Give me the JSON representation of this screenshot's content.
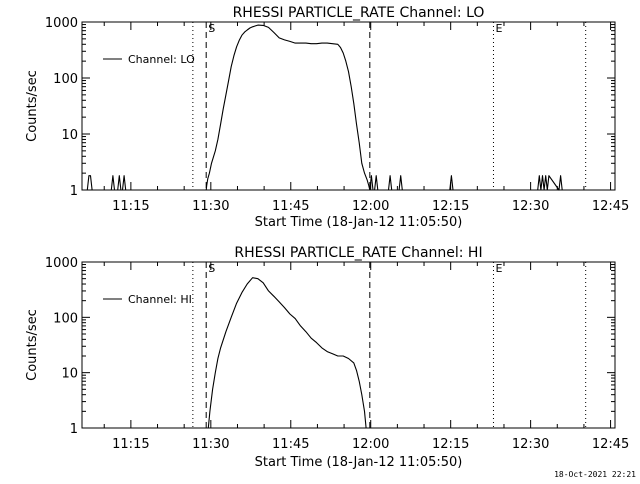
{
  "footer": {
    "timestamp": "18-Oct-2021 22:21"
  },
  "chart_data": [
    {
      "type": "line",
      "title": "RHESSI PARTICLE_RATE Channel: LO",
      "xlabel": "Start Time (18-Jan-12 11:05:50)",
      "ylabel": "Counts/sec",
      "yscale": "log",
      "ylim": [
        1,
        1000
      ],
      "xlim_minutes": [
        0,
        100
      ],
      "x_ticks": [
        {
          "t": 9.17,
          "label": "11:15"
        },
        {
          "t": 24.17,
          "label": "11:30"
        },
        {
          "t": 39.17,
          "label": "11:45"
        },
        {
          "t": 54.17,
          "label": "12:00"
        },
        {
          "t": 69.17,
          "label": "12:15"
        },
        {
          "t": 84.17,
          "label": "12:30"
        },
        {
          "t": 99.17,
          "label": "12:45"
        }
      ],
      "y_ticks": [
        {
          "v": 1,
          "label": "1"
        },
        {
          "v": 10,
          "label": "10"
        },
        {
          "v": 100,
          "label": "100"
        },
        {
          "v": 1000,
          "label": "1000"
        }
      ],
      "legend": {
        "label": "Channel: LO",
        "location": "top-left"
      },
      "markers": [
        {
          "t": 20.8,
          "style": "dotted",
          "label": ""
        },
        {
          "t": 23.3,
          "style": "dashed",
          "label": "S"
        },
        {
          "t": 54.0,
          "style": "dashed",
          "label": ""
        },
        {
          "t": 77.2,
          "style": "dotted",
          "label": "E"
        },
        {
          "t": 94.5,
          "style": "dotted",
          "label": ""
        }
      ],
      "series": [
        {
          "name": "Channel: LO",
          "x": [
            0.0,
            1.0,
            1.3,
            1.6,
            1.9,
            2.2,
            2.5,
            5.5,
            5.8,
            6.1,
            6.4,
            6.7,
            7.0,
            7.3,
            7.6,
            7.9,
            8.2,
            23.3,
            23.4,
            23.6,
            23.9,
            24.3,
            25.0,
            25.5,
            26.0,
            26.5,
            27.0,
            27.5,
            28.0,
            28.5,
            29.0,
            29.5,
            30.0,
            30.5,
            31.0,
            31.5,
            32.0,
            33.0,
            34.0,
            35.0,
            36.0,
            37.0,
            38.0,
            39.0,
            40.0,
            41.0,
            42.0,
            43.0,
            44.0,
            45.0,
            46.0,
            47.0,
            48.0,
            48.5,
            49.0,
            49.5,
            50.0,
            50.5,
            51.0,
            51.5,
            52.0,
            52.5,
            53.0,
            53.5,
            53.8,
            54.0,
            54.3,
            54.6,
            54.9,
            55.2,
            55.5,
            57.5,
            57.8,
            58.1,
            58.4,
            59.5,
            59.8,
            60.1,
            60.4,
            69.0,
            69.3,
            69.6,
            85.5,
            85.8,
            86.1,
            86.4,
            86.7,
            87.0,
            87.3,
            87.6,
            89.5,
            89.8,
            90.1
          ],
          "y": [
            1,
            1,
            1.8,
            1.8,
            1,
            1,
            1,
            1,
            1.8,
            1,
            1,
            1,
            1.8,
            1,
            1,
            1.8,
            1,
            1,
            1.2,
            1.6,
            2,
            3,
            5,
            8,
            15,
            28,
            50,
            90,
            160,
            250,
            360,
            470,
            580,
            660,
            720,
            780,
            820,
            880,
            870,
            800,
            650,
            520,
            480,
            450,
            420,
            420,
            420,
            410,
            410,
            420,
            420,
            410,
            400,
            350,
            280,
            200,
            130,
            70,
            35,
            15,
            7,
            3,
            2,
            1.5,
            1.2,
            1,
            1.8,
            1,
            1,
            1.8,
            1,
            1,
            1.8,
            1,
            1,
            1,
            1.8,
            1,
            1,
            1,
            1.8,
            1,
            1,
            1.8,
            1,
            1.8,
            1,
            1.8,
            1,
            1.8,
            1,
            1.8,
            1
          ]
        }
      ]
    },
    {
      "type": "line",
      "title": "RHESSI PARTICLE_RATE Channel: HI",
      "xlabel": "Start Time (18-Jan-12 11:05:50)",
      "ylabel": "Counts/sec",
      "yscale": "log",
      "ylim": [
        1,
        1000
      ],
      "xlim_minutes": [
        0,
        100
      ],
      "x_ticks": [
        {
          "t": 9.17,
          "label": "11:15"
        },
        {
          "t": 24.17,
          "label": "11:30"
        },
        {
          "t": 39.17,
          "label": "11:45"
        },
        {
          "t": 54.17,
          "label": "12:00"
        },
        {
          "t": 69.17,
          "label": "12:15"
        },
        {
          "t": 84.17,
          "label": "12:30"
        },
        {
          "t": 99.17,
          "label": "12:45"
        }
      ],
      "y_ticks": [
        {
          "v": 1,
          "label": "1"
        },
        {
          "v": 10,
          "label": "10"
        },
        {
          "v": 100,
          "label": "100"
        },
        {
          "v": 1000,
          "label": "1000"
        }
      ],
      "legend": {
        "label": "Channel: HI",
        "location": "top-left"
      },
      "markers": [
        {
          "t": 20.8,
          "style": "dotted",
          "label": ""
        },
        {
          "t": 23.3,
          "style": "dashed",
          "label": "S"
        },
        {
          "t": 54.0,
          "style": "dashed",
          "label": ""
        },
        {
          "t": 77.2,
          "style": "dotted",
          "label": "E"
        },
        {
          "t": 94.5,
          "style": "dotted",
          "label": ""
        }
      ],
      "series": [
        {
          "name": "Channel: HI",
          "x": [
            23.7,
            24.0,
            24.5,
            25.0,
            25.5,
            26.0,
            27.0,
            28.0,
            29.0,
            30.0,
            31.0,
            32.0,
            33.0,
            34.0,
            35.0,
            36.0,
            37.0,
            38.0,
            39.0,
            40.0,
            41.0,
            42.0,
            43.0,
            44.0,
            45.0,
            46.0,
            47.0,
            48.0,
            49.0,
            50.0,
            51.0,
            51.5,
            52.0,
            52.5,
            53.0,
            53.3
          ],
          "y": [
            1,
            2,
            5,
            10,
            18,
            28,
            55,
            100,
            180,
            280,
            400,
            520,
            500,
            420,
            300,
            240,
            190,
            150,
            115,
            95,
            70,
            55,
            42,
            35,
            28,
            24,
            22,
            20,
            20,
            18,
            15,
            11,
            7,
            4,
            2,
            1
          ]
        }
      ]
    }
  ]
}
